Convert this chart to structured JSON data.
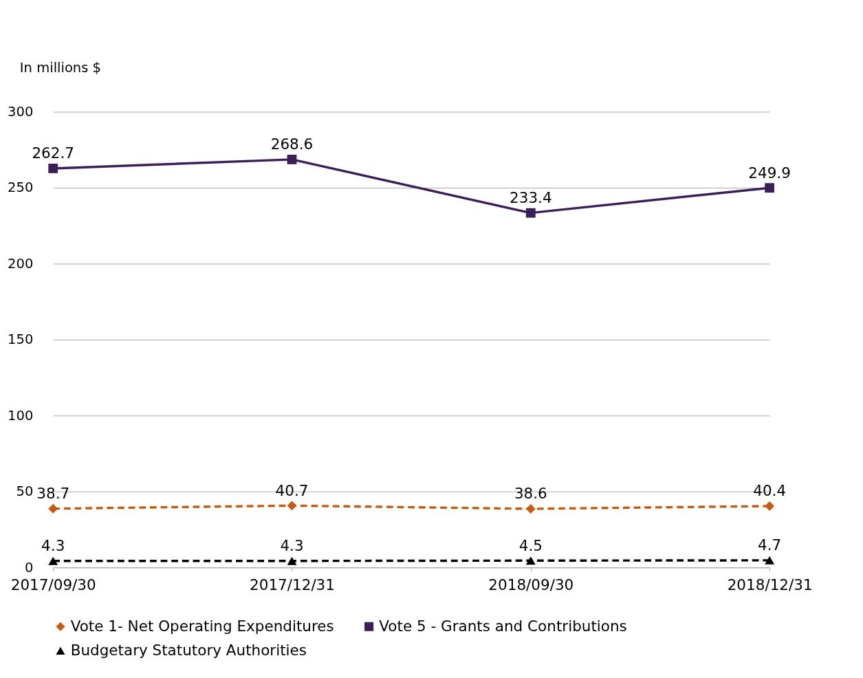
{
  "chart_data": {
    "type": "line",
    "ylabel": "In millions $",
    "categories": [
      "2017/09/30",
      "2017/12/31",
      "2018/09/30",
      "2018/12/31"
    ],
    "series": [
      {
        "name": "Vote 1- Net Operating Expenditures",
        "color": "#c55a11",
        "values": [
          38.7,
          40.7,
          38.6,
          40.4
        ],
        "marker": "diamond",
        "line_style": "dashed"
      },
      {
        "name": "Vote 5 - Grants and Contributions",
        "color": "#3b1e5a",
        "values": [
          262.7,
          268.6,
          233.4,
          249.9
        ],
        "marker": "square",
        "line_style": "solid"
      },
      {
        "name": "Budgetary Statutory Authorities",
        "color": "#000000",
        "values": [
          4.3,
          4.3,
          4.5,
          4.7
        ],
        "marker": "triangle",
        "line_style": "dashed"
      }
    ],
    "ylim": [
      0,
      300
    ],
    "yticks": [
      0,
      50,
      100,
      150,
      200,
      250,
      300
    ],
    "grid": "y",
    "legend": "bottom",
    "data_labels": true
  }
}
